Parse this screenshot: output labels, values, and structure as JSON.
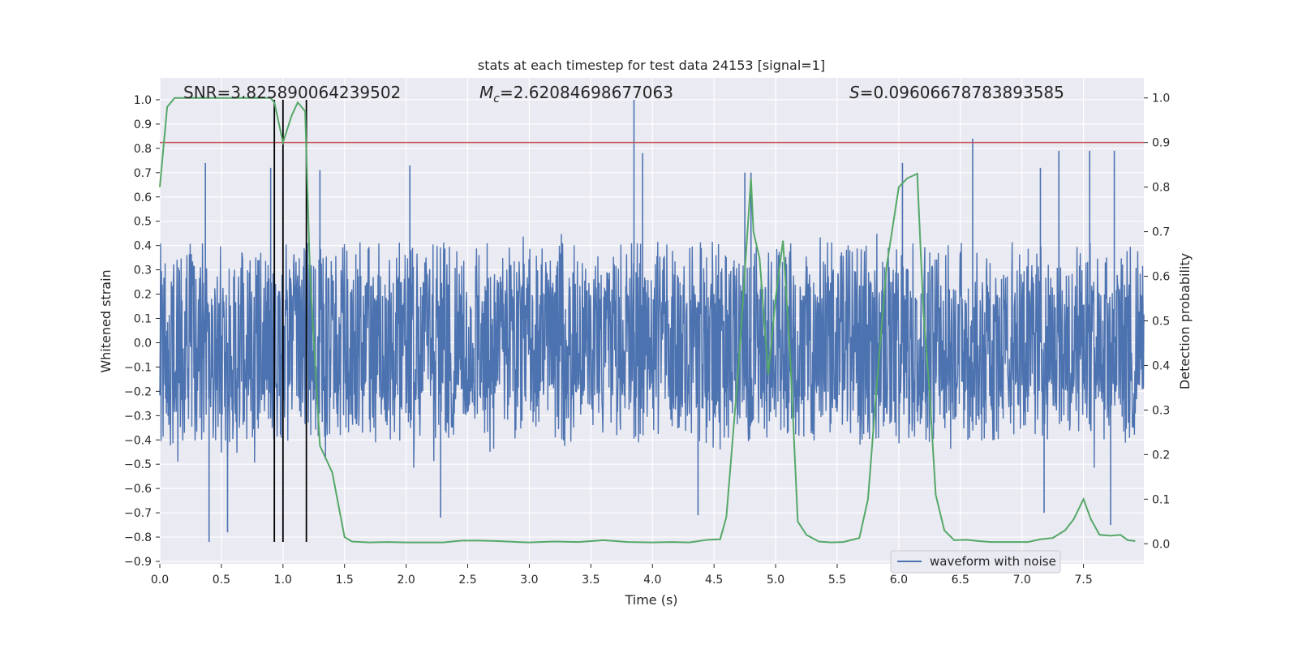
{
  "chart_data": {
    "type": "line",
    "title": "stats at each timestep for test data 24153 [signal=1]",
    "xlabel": "Time (s)",
    "ylabel_left": "Whitened strain",
    "ylabel_right": "Detection probability",
    "xlim": [
      0,
      7.99
    ],
    "ylim_left": [
      -0.91,
      1.09
    ],
    "ylim_right": [
      -0.045,
      1.045
    ],
    "xticks": [
      0.0,
      0.5,
      1.0,
      1.5,
      2.0,
      2.5,
      3.0,
      3.5,
      4.0,
      4.5,
      5.0,
      5.5,
      6.0,
      6.5,
      7.0,
      7.5
    ],
    "xtick_labels": [
      "0.0",
      "0.5",
      "1.0",
      "1.5",
      "2.0",
      "2.5",
      "3.0",
      "3.5",
      "4.0",
      "4.5",
      "5.0",
      "5.5",
      "6.0",
      "6.5",
      "7.0",
      "7.5"
    ],
    "yticks_left": [
      1.0,
      0.9,
      0.8,
      0.7,
      0.6,
      0.5,
      0.4,
      0.3,
      0.2,
      0.1,
      0.0,
      -0.1,
      -0.2,
      -0.3,
      -0.4,
      -0.5,
      -0.6,
      -0.7,
      -0.8,
      -0.9
    ],
    "ytick_labels_left": [
      "1.0",
      "0.9",
      "0.8",
      "0.7",
      "0.6",
      "0.5",
      "0.4",
      "0.3",
      "0.2",
      "0.1",
      "0.0",
      "−0.1",
      "−0.2",
      "−0.3",
      "−0.4",
      "−0.5",
      "−0.6",
      "−0.7",
      "−0.8",
      "−0.9"
    ],
    "yticks_right": [
      1.0,
      0.9,
      0.8,
      0.7,
      0.6,
      0.5,
      0.4,
      0.3,
      0.2,
      0.1,
      0.0
    ],
    "ytick_labels_right": [
      "1.0",
      "0.9",
      "0.8",
      "0.7",
      "0.6",
      "0.5",
      "0.4",
      "0.3",
      "0.2",
      "0.1",
      "0.0"
    ],
    "annotations": {
      "snr": "SNR=3.825890064239502",
      "mc_symbol": "M",
      "mc_sub": "c",
      "mc_value": "=2.62084698677063",
      "s_symbol": "S",
      "s_value": "=0.09606678783893585"
    },
    "threshold_right": 0.9,
    "vertical_markers_x": [
      0.93,
      1.0,
      1.19
    ],
    "vertical_markers_ymax_left": 1.0,
    "vertical_markers_ymin_left": -0.82,
    "waveform": {
      "name": "waveform with noise",
      "typical_envelope": 0.3,
      "max_abs_range": [
        0.2,
        0.6
      ],
      "spikes": [
        {
          "t": 0.4,
          "v": -0.82
        },
        {
          "t": 0.37,
          "v": 0.74
        },
        {
          "t": 0.55,
          "v": -0.78
        },
        {
          "t": 0.9,
          "v": 0.72
        },
        {
          "t": 1.3,
          "v": 0.71
        },
        {
          "t": 2.03,
          "v": 0.73
        },
        {
          "t": 2.28,
          "v": -0.72
        },
        {
          "t": 3.85,
          "v": 1.0
        },
        {
          "t": 3.92,
          "v": 0.78
        },
        {
          "t": 4.37,
          "v": -0.71
        },
        {
          "t": 4.75,
          "v": 0.7
        },
        {
          "t": 4.8,
          "v": 0.7
        },
        {
          "t": 6.03,
          "v": 0.74
        },
        {
          "t": 6.6,
          "v": 0.84
        },
        {
          "t": 7.15,
          "v": 0.72
        },
        {
          "t": 7.3,
          "v": 0.79
        },
        {
          "t": 7.55,
          "v": 0.79
        },
        {
          "t": 7.72,
          "v": -0.75
        },
        {
          "t": 7.75,
          "v": 0.79
        },
        {
          "t": 7.18,
          "v": -0.7
        }
      ]
    },
    "probability": {
      "name": "detection probability",
      "t": [
        0.0,
        0.06,
        0.12,
        0.2,
        0.3,
        0.5,
        0.7,
        0.8,
        0.9,
        0.93,
        1.0,
        1.07,
        1.12,
        1.18,
        1.22,
        1.3,
        1.4,
        1.5,
        1.56,
        1.7,
        1.85,
        2.0,
        2.15,
        2.3,
        2.45,
        2.6,
        2.75,
        2.9,
        3.0,
        3.2,
        3.4,
        3.6,
        3.8,
        4.0,
        4.15,
        4.3,
        4.45,
        4.55,
        4.6,
        4.7,
        4.8,
        4.82,
        4.87,
        4.94,
        5.0,
        5.06,
        5.12,
        5.18,
        5.25,
        5.35,
        5.45,
        5.55,
        5.68,
        5.75,
        5.82,
        5.9,
        6.0,
        6.07,
        6.15,
        6.2,
        6.25,
        6.3,
        6.37,
        6.45,
        6.55,
        6.65,
        6.75,
        6.85,
        6.95,
        7.05,
        7.15,
        7.25,
        7.35,
        7.42,
        7.5,
        7.56,
        7.63,
        7.72,
        7.8,
        7.86,
        7.92
      ],
      "p": [
        0.8,
        0.98,
        1.0,
        1.0,
        1.0,
        1.0,
        1.0,
        1.0,
        1.0,
        0.99,
        0.9,
        0.96,
        0.99,
        0.97,
        0.6,
        0.22,
        0.16,
        0.015,
        0.005,
        0.003,
        0.004,
        0.003,
        0.003,
        0.003,
        0.007,
        0.007,
        0.006,
        0.004,
        0.003,
        0.005,
        0.004,
        0.008,
        0.004,
        0.003,
        0.004,
        0.003,
        0.009,
        0.01,
        0.06,
        0.4,
        0.82,
        0.7,
        0.64,
        0.38,
        0.55,
        0.68,
        0.41,
        0.05,
        0.02,
        0.005,
        0.003,
        0.004,
        0.013,
        0.1,
        0.35,
        0.62,
        0.8,
        0.82,
        0.83,
        0.52,
        0.34,
        0.11,
        0.03,
        0.008,
        0.009,
        0.006,
        0.004,
        0.004,
        0.004,
        0.004,
        0.01,
        0.013,
        0.03,
        0.055,
        0.1,
        0.055,
        0.02,
        0.018,
        0.02,
        0.008,
        0.006
      ]
    },
    "legend": {
      "label": "waveform with noise",
      "position": "lower-right"
    },
    "colors": {
      "background": "#eaeaf2",
      "grid": "#ffffff",
      "waveform": "#4c72b0",
      "probability": "#55a868",
      "threshold": "#c44e52",
      "markers": "#000000"
    }
  }
}
